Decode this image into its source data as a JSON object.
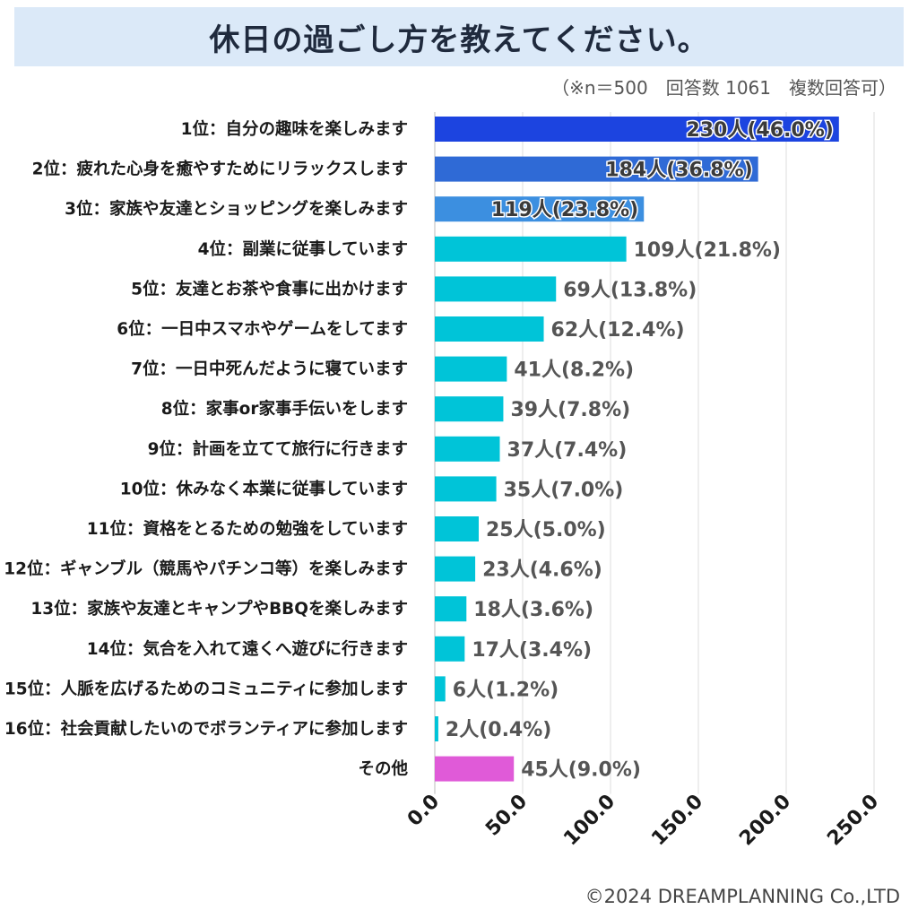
{
  "chart_data": {
    "type": "bar",
    "orientation": "horizontal",
    "title": "休日の過ごし方を教えてください。",
    "subtitle": "（※n＝500　回答数 1061　複数回答可）",
    "categories": [
      "1位：自分の趣味を楽しみます",
      "2位：疲れた心身を癒やすためにリラックスします",
      "3位：家族や友達とショッピングを楽しみます",
      "4位：副業に従事しています",
      "5位：友達とお茶や食事に出かけます",
      "6位：一日中スマホやゲームをしてます",
      "7位：一日中死んだように寝ています",
      "8位：家事or家事手伝いをします",
      "9位：計画を立てて旅行に行きます",
      "10位：休みなく本業に従事しています",
      "11位：資格をとるための勉強をしています",
      "12位：ギャンブル（競馬やパチンコ等）を楽しみます",
      "13位：家族や友達とキャンプやBBQを楽しみます",
      "14位：気合を入れて遠くへ遊びに行きます",
      "15位：人脈を広げるためのコミュニティに参加します",
      "16位：社会貢献したいのでボランティアに参加します",
      "その他"
    ],
    "values": [
      230,
      184,
      119,
      109,
      69,
      62,
      41,
      39,
      37,
      35,
      25,
      23,
      18,
      17,
      6,
      2,
      45
    ],
    "value_labels": [
      "230人(46.0%)",
      "184人(36.8%)",
      "119人(23.8%)",
      "109人(21.8%)",
      "69人(13.8%)",
      "62人(12.4%)",
      "41人(8.2%)",
      "39人(7.8%)",
      "37人(7.4%)",
      "35人(7.0%)",
      "25人(5.0%)",
      "23人(4.6%)",
      "18人(3.6%)",
      "17人(3.4%)",
      "6人(1.2%)",
      "2人(0.4%)",
      "45人(9.0%)"
    ],
    "bar_colors": [
      "#1c44e0",
      "#2f6ad6",
      "#3c8fe0",
      "#00c4d8",
      "#00c4d8",
      "#00c4d8",
      "#00c4d8",
      "#00c4d8",
      "#00c4d8",
      "#00c4d8",
      "#00c4d8",
      "#00c4d8",
      "#00c4d8",
      "#00c4d8",
      "#00c4d8",
      "#00c4d8",
      "#e05ad8"
    ],
    "label_inside": [
      true,
      true,
      true,
      false,
      false,
      false,
      false,
      false,
      false,
      false,
      false,
      false,
      false,
      false,
      false,
      false,
      false
    ],
    "xlim": [
      0,
      250
    ],
    "xticks": [
      0,
      50,
      100,
      150,
      200,
      250
    ],
    "xtick_labels": [
      "0.0",
      "50.0",
      "100.0",
      "150.0",
      "200.0",
      "250.0"
    ],
    "grid": true,
    "xlabel": "",
    "ylabel": ""
  },
  "footer": "©2024 DREAMPLANNING Co.,LTD",
  "colors": {
    "title_bg": "#dbe9f8",
    "grid": "#dddddd",
    "outside_label": "#555555",
    "inside_label_fill": "#3a3a3a",
    "inside_label_stroke": "#ffffff"
  }
}
